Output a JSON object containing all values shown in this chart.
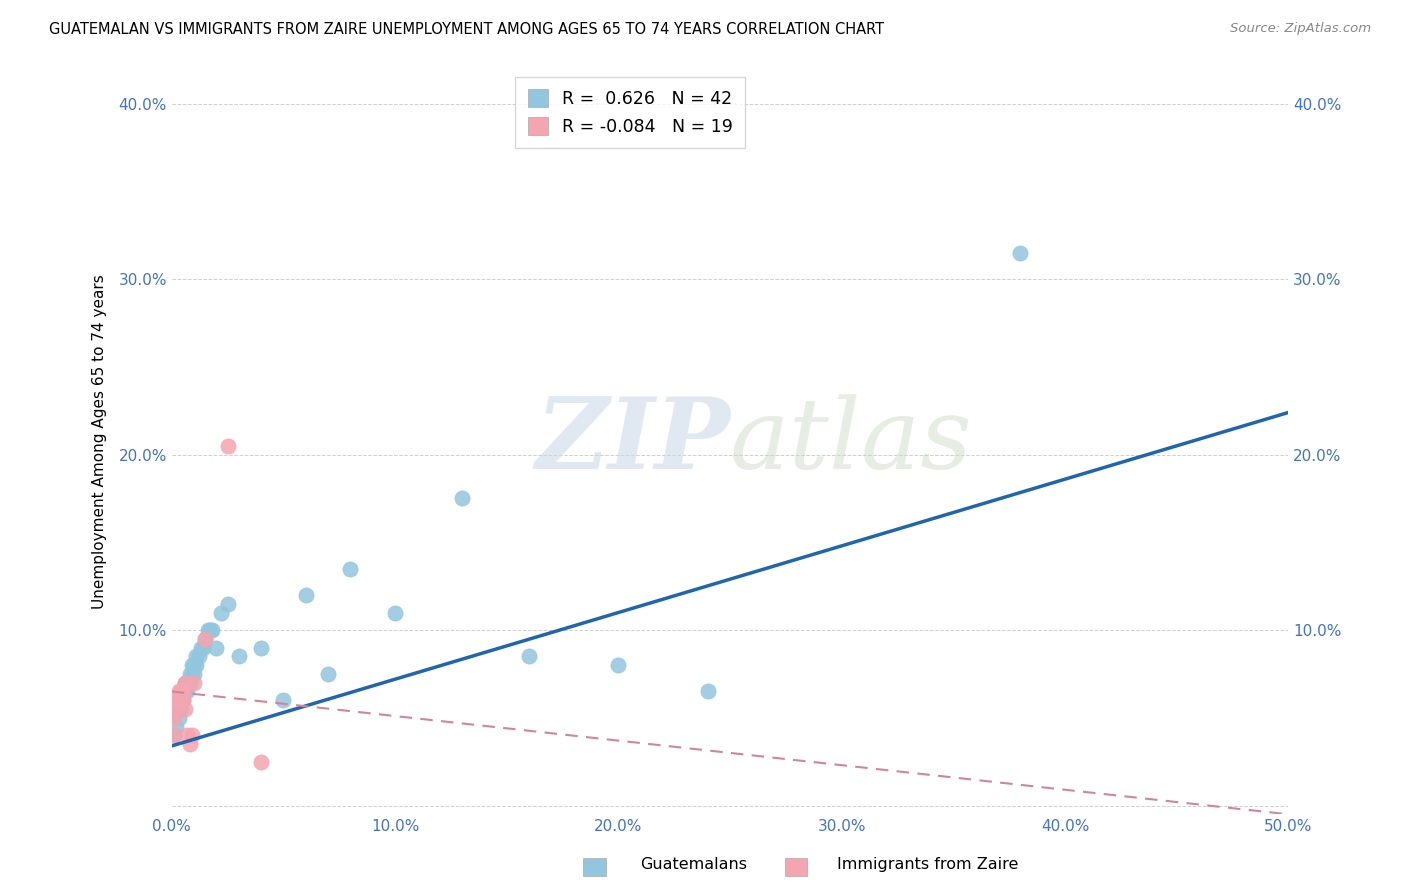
{
  "title": "GUATEMALAN VS IMMIGRANTS FROM ZAIRE UNEMPLOYMENT AMONG AGES 65 TO 74 YEARS CORRELATION CHART",
  "source": "Source: ZipAtlas.com",
  "ylabel": "Unemployment Among Ages 65 to 74 years",
  "xlim": [
    0.0,
    0.5
  ],
  "ylim": [
    -0.005,
    0.42
  ],
  "xticks": [
    0.0,
    0.1,
    0.2,
    0.3,
    0.4,
    0.5
  ],
  "xticklabels": [
    "0.0%",
    "10.0%",
    "20.0%",
    "30.0%",
    "40.0%",
    "50.0%"
  ],
  "yticks": [
    0.0,
    0.1,
    0.2,
    0.3,
    0.4
  ],
  "yticklabels": [
    "",
    "10.0%",
    "20.0%",
    "30.0%",
    "40.0%"
  ],
  "blue_R": 0.626,
  "blue_N": 42,
  "pink_R": -0.084,
  "pink_N": 19,
  "blue_color": "#92c5de",
  "pink_color": "#f4a5b0",
  "line_blue": "#2166ac",
  "line_pink": "#d4849a",
  "background_color": "#ffffff",
  "grid_color": "#d0d0d0",
  "watermark_zip": "ZIP",
  "watermark_atlas": "atlas",
  "blue_x": [
    0.001,
    0.002,
    0.003,
    0.003,
    0.004,
    0.004,
    0.005,
    0.005,
    0.006,
    0.006,
    0.007,
    0.007,
    0.008,
    0.008,
    0.009,
    0.009,
    0.01,
    0.01,
    0.011,
    0.011,
    0.012,
    0.013,
    0.014,
    0.015,
    0.016,
    0.017,
    0.018,
    0.02,
    0.022,
    0.025,
    0.03,
    0.04,
    0.05,
    0.06,
    0.07,
    0.08,
    0.1,
    0.13,
    0.16,
    0.2,
    0.24,
    0.38
  ],
  "blue_y": [
    0.04,
    0.045,
    0.05,
    0.055,
    0.055,
    0.06,
    0.06,
    0.065,
    0.065,
    0.07,
    0.065,
    0.07,
    0.07,
    0.075,
    0.075,
    0.08,
    0.075,
    0.08,
    0.08,
    0.085,
    0.085,
    0.09,
    0.09,
    0.095,
    0.1,
    0.1,
    0.1,
    0.09,
    0.11,
    0.115,
    0.085,
    0.09,
    0.06,
    0.12,
    0.075,
    0.135,
    0.11,
    0.175,
    0.085,
    0.08,
    0.065,
    0.315
  ],
  "pink_x": [
    0.001,
    0.001,
    0.002,
    0.002,
    0.003,
    0.003,
    0.004,
    0.004,
    0.005,
    0.005,
    0.006,
    0.006,
    0.007,
    0.008,
    0.009,
    0.01,
    0.015,
    0.025,
    0.04
  ],
  "pink_y": [
    0.04,
    0.05,
    0.055,
    0.06,
    0.06,
    0.065,
    0.065,
    0.06,
    0.06,
    0.065,
    0.07,
    0.055,
    0.04,
    0.035,
    0.04,
    0.07,
    0.095,
    0.205,
    0.025
  ]
}
